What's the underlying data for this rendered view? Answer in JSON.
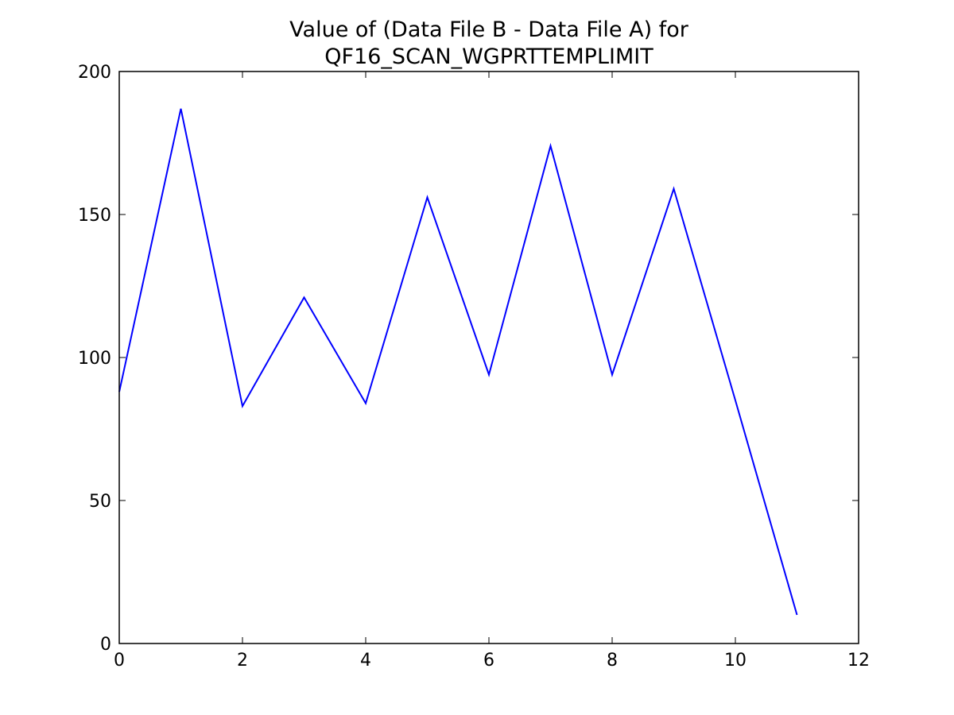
{
  "chart_data": {
    "type": "line",
    "title": [
      "Value of (Data File B - Data File A) for",
      "QF16_SCAN_WGPRTTEMPLIMIT"
    ],
    "x": [
      0,
      1,
      2,
      3,
      4,
      5,
      6,
      7,
      8,
      9,
      10,
      11
    ],
    "series": [
      {
        "color": "#0000ff",
        "values": [
          88,
          187,
          83,
          121,
          84,
          156,
          94,
          174,
          94,
          159,
          85,
          10
        ]
      }
    ],
    "xlim": [
      0,
      12
    ],
    "xticks": [
      0,
      2,
      4,
      6,
      8,
      10,
      12
    ],
    "ylim": [
      0,
      200
    ],
    "yticks": [
      0,
      50,
      100,
      150,
      200
    ],
    "grid": false
  }
}
